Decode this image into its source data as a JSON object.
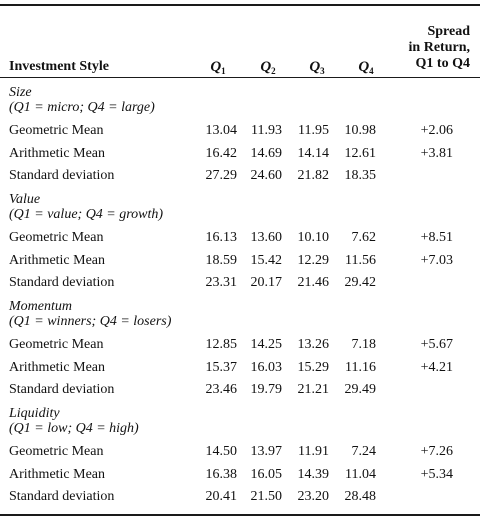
{
  "header": {
    "investment_style": "Investment Style",
    "quartiles": [
      {
        "letter": "Q",
        "sub": "1"
      },
      {
        "letter": "Q",
        "sub": "2"
      },
      {
        "letter": "Q",
        "sub": "3"
      },
      {
        "letter": "Q",
        "sub": "4"
      }
    ],
    "spread_lines": [
      "Spread",
      "in Return,",
      "Q1 to Q4"
    ]
  },
  "sections": [
    {
      "title": "Size",
      "subtitle": "(Q1 = micro; Q4 = large)",
      "rows": [
        {
          "label": "Geometric Mean",
          "q1": "13.04",
          "q2": "11.93",
          "q3": "11.95",
          "q4": "10.98",
          "spread": "+2.06"
        },
        {
          "label": "Arithmetic Mean",
          "q1": "16.42",
          "q2": "14.69",
          "q3": "14.14",
          "q4": "12.61",
          "spread": "+3.81"
        },
        {
          "label": "Standard deviation",
          "q1": "27.29",
          "q2": "24.60",
          "q3": "21.82",
          "q4": "18.35",
          "spread": ""
        }
      ]
    },
    {
      "title": "Value",
      "subtitle": "(Q1 = value; Q4 = growth)",
      "rows": [
        {
          "label": "Geometric Mean",
          "q1": "16.13",
          "q2": "13.60",
          "q3": "10.10",
          "q4": "7.62",
          "spread": "+8.51"
        },
        {
          "label": "Arithmetic Mean",
          "q1": "18.59",
          "q2": "15.42",
          "q3": "12.29",
          "q4": "11.56",
          "spread": "+7.03"
        },
        {
          "label": "Standard deviation",
          "q1": "23.31",
          "q2": "20.17",
          "q3": "21.46",
          "q4": "29.42",
          "spread": ""
        }
      ]
    },
    {
      "title": "Momentum",
      "subtitle": "(Q1 = winners; Q4 = losers)",
      "rows": [
        {
          "label": "Geometric Mean",
          "q1": "12.85",
          "q2": "14.25",
          "q3": "13.26",
          "q4": "7.18",
          "spread": "+5.67"
        },
        {
          "label": "Arithmetic Mean",
          "q1": "15.37",
          "q2": "16.03",
          "q3": "15.29",
          "q4": "11.16",
          "spread": "+4.21"
        },
        {
          "label": "Standard deviation",
          "q1": "23.46",
          "q2": "19.79",
          "q3": "21.21",
          "q4": "29.49",
          "spread": ""
        }
      ]
    },
    {
      "title": "Liquidity",
      "subtitle": "(Q1 = low; Q4 = high)",
      "rows": [
        {
          "label": "Geometric Mean",
          "q1": "14.50",
          "q2": "13.97",
          "q3": "11.91",
          "q4": "7.24",
          "spread": "+7.26"
        },
        {
          "label": "Arithmetic Mean",
          "q1": "16.38",
          "q2": "16.05",
          "q3": "14.39",
          "q4": "11.04",
          "spread": "+5.34"
        },
        {
          "label": "Standard deviation",
          "q1": "20.41",
          "q2": "21.50",
          "q3": "23.20",
          "q4": "28.48",
          "spread": ""
        }
      ]
    }
  ]
}
